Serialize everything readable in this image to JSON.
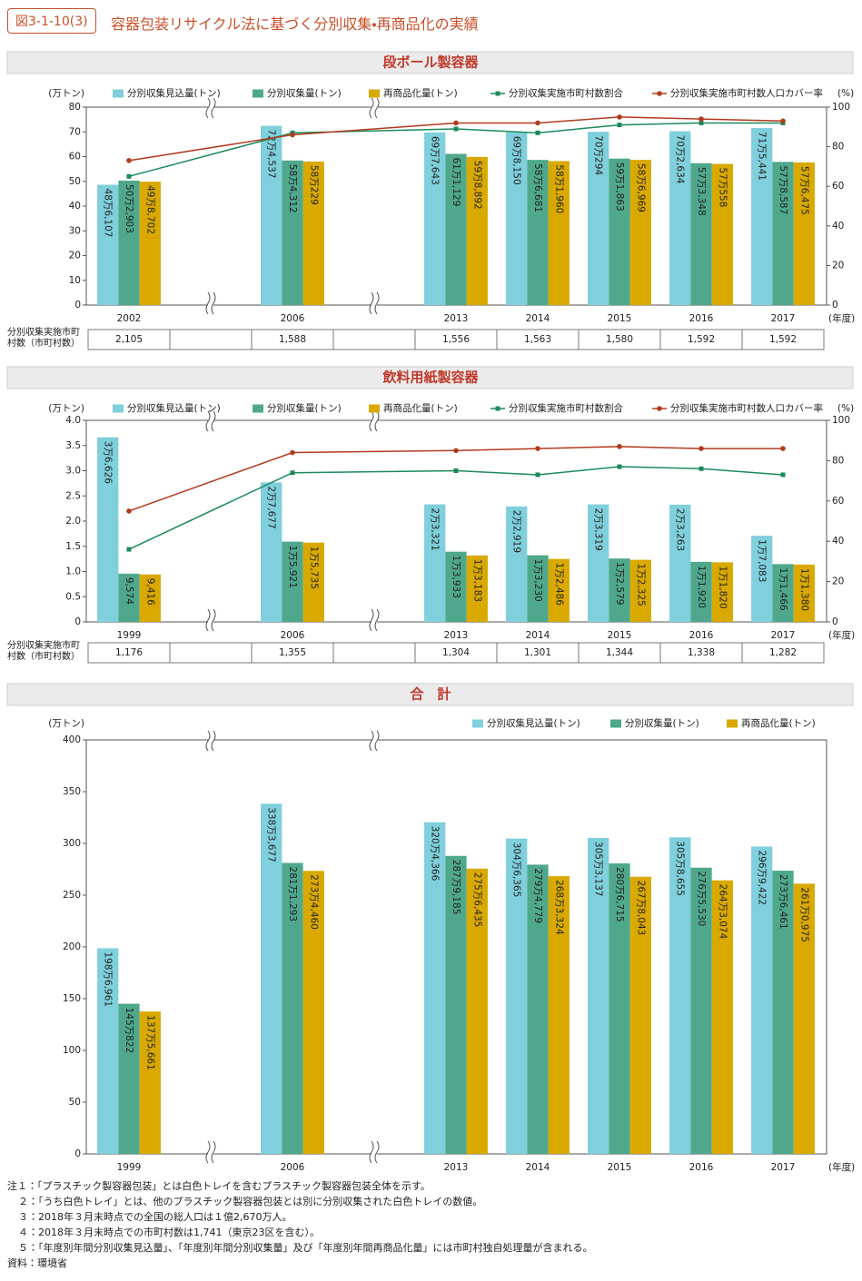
{
  "header": {
    "figure_label": "図3-1-10(3)",
    "title": "容器包装リサイクル法に基づく分別収集・再商品化の実績"
  },
  "chart_data": [
    {
      "type": "bar_line",
      "title": "段ボール製容器",
      "ylabel": "(万トン)",
      "y2label": "(%)",
      "x_unit": "(年度)",
      "categories": [
        "2002",
        "2006",
        "2013",
        "2014",
        "2015",
        "2016",
        "2017"
      ],
      "ylim": [
        0,
        80
      ],
      "yticks": [
        0,
        10,
        20,
        30,
        40,
        50,
        60,
        70,
        80
      ],
      "y2lim": [
        0,
        100
      ],
      "y2ticks": [
        0,
        20,
        40,
        60,
        80,
        100
      ],
      "series": [
        {
          "name": "分別収集見込量(トン)",
          "color": "#7fcfdc",
          "values": [
            48.6107,
            72.4537,
            69.7643,
            69.815,
            70.0294,
            70.2634,
            71.5441
          ],
          "value_labels": [
            "48万6,107",
            "72万4,537",
            "69万7,643",
            "69万8,150",
            "70万294",
            "70万2,634",
            "71万5,441"
          ]
        },
        {
          "name": "分別収集量(トン)",
          "color": "#4fa88c",
          "values": [
            50.2903,
            58.4312,
            61.1129,
            58.6681,
            59.1863,
            57.3348,
            57.8587
          ],
          "value_labels": [
            "50万2,903",
            "58万4,312",
            "61万1,129",
            "58万6,681",
            "59万1,863",
            "57万3,348",
            "57万8,587"
          ]
        },
        {
          "name": "再商品化量(トン)",
          "color": "#d9a900",
          "values": [
            49.8702,
            58.0229,
            59.8892,
            58.196,
            58.6969,
            57.0558,
            57.6475
          ],
          "value_labels": [
            "49万8,702",
            "58万229",
            "59万8,892",
            "58万1,960",
            "58万6,969",
            "57万558",
            "57万6,475"
          ]
        },
        {
          "name": "分別収集実施市町村数割合",
          "color": "#1b8a5a",
          "axis": "y2",
          "marker": "square",
          "values": [
            65,
            87,
            89,
            87,
            91,
            92,
            92
          ]
        },
        {
          "name": "分別収集実施市町村数人口カバー率",
          "color": "#b23a1e",
          "axis": "y2",
          "marker": "circle",
          "values": [
            73,
            86,
            92,
            92,
            95,
            94,
            93
          ]
        }
      ],
      "table": {
        "label": "分別収集実施市町村数（市町村数）",
        "cells": [
          "2,105",
          "1,588",
          "1,556",
          "1,563",
          "1,580",
          "1,592",
          "1,592"
        ]
      }
    },
    {
      "type": "bar_line",
      "title": "飲料用紙製容器",
      "ylabel": "(万トン)",
      "y2label": "(%)",
      "x_unit": "(年度)",
      "categories": [
        "1999",
        "2006",
        "2013",
        "2014",
        "2015",
        "2016",
        "2017"
      ],
      "ylim": [
        0,
        4
      ],
      "yticks": [
        0,
        0.5,
        {
          "value": 1,
          "label": "1.0"
        },
        1.5,
        {
          "value": 2,
          "label": "2.0"
        },
        2.5,
        {
          "value": 3,
          "label": "3.0"
        },
        3.5,
        {
          "value": 4,
          "label": "4.0"
        }
      ],
      "y2lim": [
        0,
        100
      ],
      "y2ticks": [
        0,
        20,
        40,
        60,
        80,
        100
      ],
      "series": [
        {
          "name": "分別収集見込量(トン)",
          "color": "#7fcfdc",
          "values": [
            3.6626,
            2.7677,
            2.3321,
            2.2919,
            2.3319,
            2.3263,
            1.7083
          ],
          "value_labels": [
            "3万6,626",
            "2万7,677",
            "2万3,321",
            "2万2,919",
            "2万3,319",
            "2万3,263",
            "1万7,083"
          ]
        },
        {
          "name": "分別収集量(トン)",
          "color": "#4fa88c",
          "values": [
            0.9574,
            1.5921,
            1.3933,
            1.323,
            1.2579,
            1.192,
            1.1466
          ],
          "value_labels": [
            "9,574",
            "1万5,921",
            "1万3,933",
            "1万3,230",
            "1万2,579",
            "1万1,920",
            "1万1,466"
          ]
        },
        {
          "name": "再商品化量(トン)",
          "color": "#d9a900",
          "values": [
            0.9416,
            1.5735,
            1.3183,
            1.2486,
            1.2325,
            1.182,
            1.138
          ],
          "value_labels": [
            "9,416",
            "1万5,735",
            "1万3,183",
            "1万2,486",
            "1万2,325",
            "1万1,820",
            "1万1,380"
          ]
        },
        {
          "name": "分別収集実施市町村数割合",
          "color": "#1b8a5a",
          "axis": "y2",
          "marker": "square",
          "values": [
            36,
            74,
            75,
            73,
            77,
            76,
            73
          ]
        },
        {
          "name": "分別収集実施市町村数人口カバー率",
          "color": "#b23a1e",
          "axis": "y2",
          "marker": "circle",
          "values": [
            55,
            84,
            85,
            86,
            87,
            86,
            86
          ]
        }
      ],
      "table": {
        "label": "分別収集実施市町村数（市町村数）",
        "cells": [
          "1,176",
          "1,355",
          "1,304",
          "1,301",
          "1,344",
          "1,338",
          "1,282"
        ]
      }
    },
    {
      "type": "bar",
      "title": "合　計",
      "ylabel": "(万トン)",
      "x_unit": "(年度)",
      "categories": [
        "1999",
        "2006",
        "2013",
        "2014",
        "2015",
        "2016",
        "2017"
      ],
      "ylim": [
        0,
        400
      ],
      "yticks": [
        0,
        50,
        100,
        150,
        200,
        250,
        300,
        350,
        400
      ],
      "series": [
        {
          "name": "分別収集見込量(トン)",
          "color": "#7fcfdc",
          "values": [
            198.6961,
            338.3677,
            320.4366,
            304.6365,
            305.3137,
            305.8655,
            296.9422
          ],
          "value_labels": [
            "198万6,961",
            "338万3,677",
            "320万4,366",
            "304万6,365",
            "305万3,137",
            "305万8,655",
            "296万9,422"
          ]
        },
        {
          "name": "分別収集量(トン)",
          "color": "#4fa88c",
          "values": [
            145.0822,
            281.1293,
            287.9185,
            279.4779,
            280.6715,
            276.553,
            273.6461
          ],
          "value_labels": [
            "145万822",
            "281万1,293",
            "287万9,185",
            "279万4,779",
            "280万6,715",
            "276万5,530",
            "273万6,461"
          ]
        },
        {
          "name": "再商品化量(トン)",
          "color": "#d9a900",
          "values": [
            137.5661,
            273.446,
            275.6435,
            268.3324,
            267.8043,
            264.3074,
            261.0975
          ],
          "value_labels": [
            "137万5,661",
            "273万4,460",
            "275万6,435",
            "268万3,324",
            "267万8,043",
            "264万3,074",
            "261万0,975"
          ]
        }
      ]
    }
  ],
  "notes": [
    "注１：「プラスチック製容器包装」とは白色トレイを含むプラスチック製容器包装全体を示す。",
    "２：「うち白色トレイ」とは、他のプラスチック製容器包装とは別に分別収集された白色トレイの数値。",
    "３：2018年３月末時点での全国の総人口は１億2,670万人。",
    "４：2018年３月末時点での市町村数は1,741（東京23区を含む）。",
    "５：「年度別年間分別収集見込量」、「年度別年間分別収集量」及び「年度別年間再商品化量」には市町村独自処理量が含まれる。"
  ],
  "source": "資料：環境省"
}
